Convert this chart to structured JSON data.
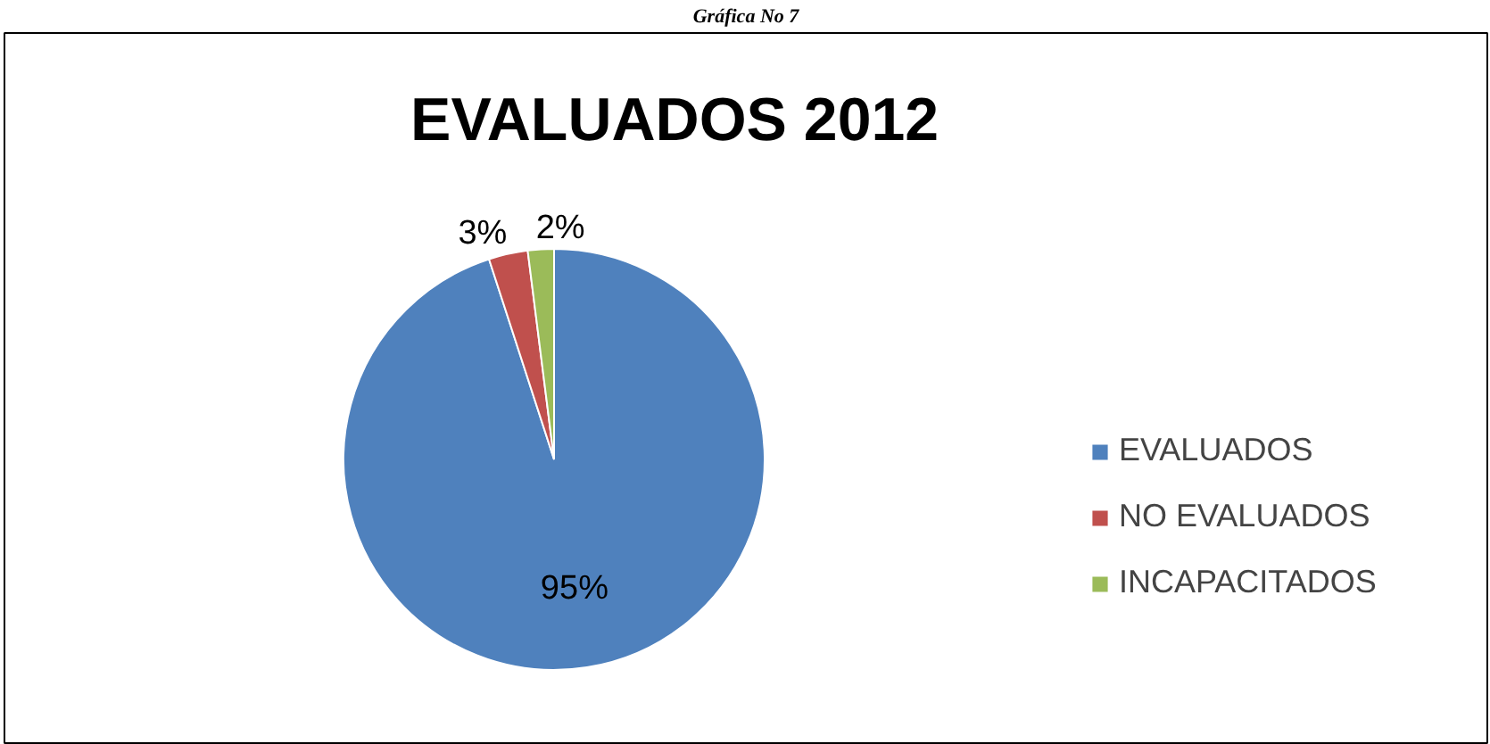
{
  "chart_data": {
    "type": "pie",
    "title": "EVALUADOS   2012",
    "annotations": [
      "Gráfica No 7"
    ],
    "categories": [
      "EVALUADOS",
      "NO EVALUADOS",
      "INCAPACITADOS"
    ],
    "values": [
      95,
      3,
      2
    ],
    "colors": [
      "#4f81bd",
      "#c0504d",
      "#9bbb59"
    ],
    "value_labels": [
      "95%",
      "3%",
      "2%"
    ],
    "legend": "right"
  }
}
